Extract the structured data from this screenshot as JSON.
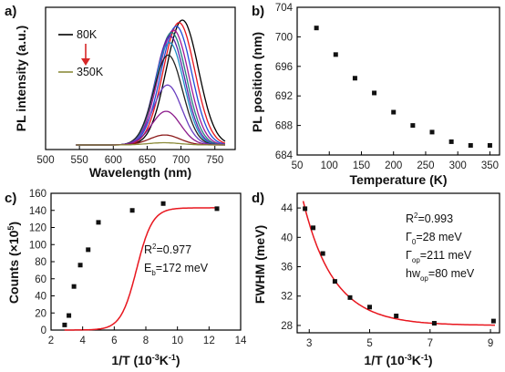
{
  "chart_data": [
    {
      "id": "a",
      "panel_label": "a)",
      "type": "line",
      "xlabel": "Wavelength (nm)",
      "ylabel": "PL intensity (a.u.)",
      "xlim": [
        500,
        780
      ],
      "xticks": [
        "500",
        "550",
        "600",
        "650",
        "700",
        "750"
      ],
      "y_ticks_shown": false,
      "legend": {
        "start": "80K",
        "end": "350K",
        "start_color": "#000000",
        "end_color": "#8c8c3c",
        "arrow_color": "#d62728"
      },
      "series": [
        {
          "color": "#000000",
          "peak_nm": 702,
          "amplitude": 1.0,
          "fwhm_nm": 56
        },
        {
          "color": "#e8161e",
          "peak_nm": 697,
          "amplitude": 0.98,
          "fwhm_nm": 55
        },
        {
          "color": "#1f4fd8",
          "peak_nm": 693,
          "amplitude": 0.95,
          "fwhm_nm": 54
        },
        {
          "color": "#a0189a",
          "peak_nm": 689,
          "amplitude": 0.92,
          "fwhm_nm": 53
        },
        {
          "color": "#1f7f7f",
          "peak_nm": 686,
          "amplitude": 0.9,
          "fwhm_nm": 52
        },
        {
          "color": "#5a1fa8",
          "peak_nm": 684,
          "amplitude": 0.87,
          "fwhm_nm": 51
        },
        {
          "color": "#1e90c8",
          "peak_nm": 683,
          "amplitude": 0.82,
          "fwhm_nm": 50
        },
        {
          "color": "#222222",
          "peak_nm": 681,
          "amplitude": 0.72,
          "fwhm_nm": 50
        },
        {
          "color": "#6a3fc0",
          "peak_nm": 680,
          "amplitude": 0.48,
          "fwhm_nm": 50
        },
        {
          "color": "#8b1a8b",
          "peak_nm": 678,
          "amplitude": 0.27,
          "fwhm_nm": 50
        },
        {
          "color": "#8b1a1a",
          "peak_nm": 676,
          "amplitude": 0.08,
          "fwhm_nm": 52
        },
        {
          "color": "#8c8c3c",
          "peak_nm": 675,
          "amplitude": 0.018,
          "fwhm_nm": 55
        }
      ]
    },
    {
      "id": "b",
      "panel_label": "b)",
      "type": "scatter",
      "xlabel": "Temperature (K)",
      "ylabel": "PL position (nm)",
      "xlim": [
        50,
        365
      ],
      "ylim": [
        684,
        704
      ],
      "xticks": [
        50,
        100,
        150,
        200,
        250,
        300,
        350
      ],
      "yticks": [
        684,
        688,
        692,
        696,
        700,
        704
      ],
      "points": [
        [
          80,
          701.2
        ],
        [
          110,
          697.6
        ],
        [
          140,
          694.4
        ],
        [
          170,
          692.4
        ],
        [
          200,
          689.8
        ],
        [
          230,
          688.0
        ],
        [
          260,
          687.1
        ],
        [
          290,
          685.8
        ],
        [
          320,
          685.3
        ],
        [
          350,
          685.3
        ]
      ]
    },
    {
      "id": "c",
      "panel_label": "c)",
      "type": "scatter",
      "xlabel": "1/T (10⁻³K⁻¹)",
      "ylabel": "Counts (×10⁵)",
      "xlim": [
        2,
        14
      ],
      "ylim": [
        0,
        160
      ],
      "xticks": [
        2,
        4,
        6,
        8,
        10,
        12,
        14
      ],
      "yticks": [
        0,
        20,
        40,
        60,
        80,
        100,
        120,
        140,
        160
      ],
      "annotations": [
        "R²=0.977",
        "E_b=172 meV"
      ],
      "fit": {
        "color": "#e8161e",
        "I0": 143,
        "A": 2700000.0,
        "Eb_meV": 172
      },
      "points": [
        [
          2.86,
          6
        ],
        [
          3.13,
          17
        ],
        [
          3.45,
          51
        ],
        [
          3.85,
          76
        ],
        [
          4.35,
          94
        ],
        [
          5.0,
          126
        ],
        [
          7.14,
          140
        ],
        [
          9.1,
          148
        ],
        [
          12.5,
          142
        ]
      ]
    },
    {
      "id": "d",
      "panel_label": "d)",
      "type": "scatter",
      "xlabel": "1/T (10⁻³K⁻¹)",
      "ylabel": "FWHM (meV)",
      "xlim": [
        2.6,
        9.3
      ],
      "ylim": [
        27,
        46
      ],
      "xticks": [
        3,
        5,
        7,
        9
      ],
      "yticks": [
        28,
        32,
        36,
        40,
        44
      ],
      "annotations": [
        "R²=0.993",
        "Γ₀=28 meV",
        "Γ_op=211 meV",
        "hw_op=80 meV"
      ],
      "fit": {
        "color": "#e8161e",
        "G0": 28,
        "Gop": 211,
        "hwop_meV": 80
      },
      "points": [
        [
          2.86,
          43.9
        ],
        [
          3.13,
          41.3
        ],
        [
          3.45,
          37.8
        ],
        [
          3.85,
          34.0
        ],
        [
          4.35,
          31.8
        ],
        [
          5.0,
          30.5
        ],
        [
          5.88,
          29.3
        ],
        [
          7.14,
          28.3
        ],
        [
          9.1,
          28.6
        ]
      ]
    }
  ]
}
